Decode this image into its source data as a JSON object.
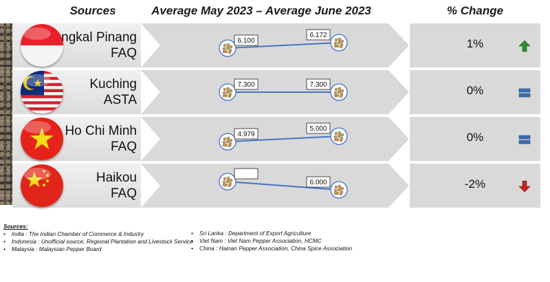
{
  "headers": {
    "sources": "Sources",
    "period": "Average May 2023 – Average June 2023",
    "change": "% Change"
  },
  "rows": [
    {
      "city": "Pangkal Pinang",
      "grade": "FAQ",
      "start_value": 6.1,
      "start_label": "6.100",
      "end_value": 6.172,
      "end_label": "6.172",
      "change": "1%",
      "trend": "up",
      "flag": "indonesia-flag-icon"
    },
    {
      "city": "Kuching",
      "grade": "ASTA",
      "start_value": 7.3,
      "start_label": "7.300",
      "end_value": 7.3,
      "end_label": "7.300",
      "change": "0%",
      "trend": "flat",
      "flag": "malaysia-flag-icon"
    },
    {
      "city": "Ho Chi Minh",
      "grade": "FAQ",
      "start_value": 4.979,
      "start_label": "4.979",
      "end_value": 5.0,
      "end_label": "5.000",
      "change": "0%",
      "trend": "flat",
      "flag": "vietnam-flag-icon"
    },
    {
      "city": "Haikou",
      "grade": "FAQ",
      "start_value": 6.122,
      "start_label": "",
      "end_value": 6.0,
      "end_label": "6.000",
      "change": "-2%",
      "trend": "down",
      "flag": "china-flag-icon"
    }
  ],
  "chart_data": {
    "type": "line",
    "x": [
      "Average May 2023",
      "Average June 2023"
    ],
    "series": [
      {
        "name": "Pangkal Pinang FAQ",
        "values": [
          6.1,
          6.172
        ]
      },
      {
        "name": "Kuching ASTA",
        "values": [
          7.3,
          7.3
        ]
      },
      {
        "name": "Ho Chi Minh FAQ",
        "values": [
          4.979,
          5.0
        ]
      },
      {
        "name": "Haikou FAQ",
        "values": [
          6.122,
          6.0
        ]
      }
    ],
    "title": "Average May 2023 – Average June 2023"
  },
  "colors": {
    "up": "#2e8b2e",
    "down": "#c0261e",
    "flat": "#3a6fb0",
    "line": "#4472c4",
    "panel": "#d9d9d9"
  },
  "footnotes": {
    "title": "Sources:",
    "left": [
      "India : The Indian Chamber of Commerce & Industry",
      "Indonesia : Unofficial source, Regional Plantation and Livestock Service",
      "Malaysia : Malaysian Pepper Board"
    ],
    "right": [
      "Sri Lanka : Department of Export Agriculture",
      "Viet Nam : Viet Nam Pepper Association, HCMC",
      "China : Hainan Pepper Association, China Spice Association"
    ]
  }
}
